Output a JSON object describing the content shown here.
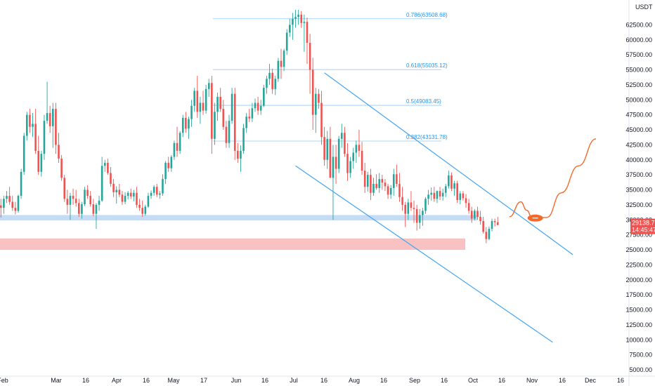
{
  "chart_data": {
    "type": "candlestick",
    "currency_label": "USDT",
    "x_ticks": [
      "Feb",
      "Mar",
      "16",
      "Apr",
      "16",
      "May",
      "17",
      "Jun",
      "16",
      "Jul",
      "16",
      "Aug",
      "16",
      "Sep",
      "16",
      "Oct",
      "16",
      "Nov",
      "16",
      "Dec",
      "16"
    ],
    "y_ticks": [
      "5000.00",
      "7500.00",
      "10000.00",
      "12500.00",
      "15000.00",
      "17500.00",
      "20000.00",
      "22500.00",
      "25000.00",
      "27500.00",
      "30000.00",
      "32500.00",
      "35000.00",
      "37500.00",
      "40000.00",
      "42500.00",
      "45000.00",
      "47500.00",
      "50000.00",
      "52500.00",
      "55000.00",
      "57500.00",
      "60000.00",
      "62500.00"
    ],
    "ylim": [
      4000,
      66000
    ],
    "last_price": {
      "value": "29138.71",
      "countdown": "14:45:47",
      "y": 29138.71
    },
    "fib_levels": [
      {
        "label": "0.786(63508.68)",
        "value": 63508.68
      },
      {
        "label": "0.618(55035.12)",
        "value": 55035.12
      },
      {
        "label": "0.5(49083.45)",
        "value": 49083.45
      },
      {
        "label": "0.382(43131.78)",
        "value": 43131.78
      }
    ],
    "zones": [
      {
        "name": "resistance",
        "y_low": 29900,
        "y_high": 30800,
        "color": "#bbd6f5"
      },
      {
        "name": "support",
        "y_low": 25000,
        "y_high": 26900,
        "color": "#f7b7b7"
      }
    ],
    "colors": {
      "up": "#26a69a",
      "down": "#ef5350",
      "channel": "#42a5f5",
      "projection": "#f4692a",
      "fib": "#90caf9",
      "price_tag": "#ef5350"
    },
    "candles": [
      [
        1,
        32400,
        33500,
        30400,
        32000
      ],
      [
        2,
        32000,
        34000,
        31000,
        33500
      ],
      [
        3,
        33500,
        34800,
        32800,
        34000
      ],
      [
        4,
        34000,
        35500,
        32500,
        33000
      ],
      [
        5,
        33000,
        34000,
        31500,
        32000
      ],
      [
        6,
        32000,
        33000,
        30900,
        31500
      ],
      [
        7,
        31500,
        34200,
        31200,
        34000
      ],
      [
        8,
        34000,
        38500,
        33500,
        38000
      ],
      [
        9,
        38000,
        44500,
        37500,
        44000
      ],
      [
        10,
        44000,
        48000,
        43200,
        47500
      ],
      [
        11,
        47500,
        48500,
        44500,
        45500
      ],
      [
        12,
        45500,
        47800,
        43800,
        46000
      ],
      [
        13,
        46000,
        48500,
        41000,
        41500
      ],
      [
        14,
        41500,
        44000,
        37500,
        38000
      ],
      [
        15,
        38000,
        41500,
        37200,
        41000
      ],
      [
        16,
        41000,
        47500,
        40000,
        46500
      ],
      [
        17,
        46500,
        53000,
        46000,
        47800
      ],
      [
        18,
        47800,
        49000,
        44500,
        45600
      ],
      [
        19,
        45600,
        49500,
        42000,
        48500
      ],
      [
        20,
        48500,
        49500,
        41000,
        42500
      ],
      [
        21,
        42500,
        44500,
        39500,
        40200
      ],
      [
        22,
        40200,
        40800,
        36500,
        37000
      ],
      [
        23,
        37000,
        37500,
        33000,
        33500
      ],
      [
        24,
        33500,
        35000,
        31000,
        32500
      ],
      [
        25,
        32500,
        34500,
        30000,
        34000
      ],
      [
        26,
        34000,
        35200,
        32500,
        33500
      ],
      [
        27,
        33500,
        35000,
        32200,
        32800
      ],
      [
        28,
        32800,
        33500,
        30500,
        31000
      ],
      [
        29,
        31000,
        33000,
        30200,
        32600
      ],
      [
        30,
        32600,
        35500,
        32300,
        35000
      ],
      [
        31,
        35000,
        35800,
        33500,
        34000
      ],
      [
        32,
        34000,
        34800,
        32200,
        32600
      ],
      [
        33,
        32600,
        33500,
        30600,
        31000
      ],
      [
        34,
        31000,
        32800,
        28500,
        32500
      ],
      [
        35,
        32500,
        34000,
        31500,
        33200
      ],
      [
        36,
        33200,
        40500,
        33000,
        39000
      ],
      [
        37,
        39000,
        40000,
        38000,
        39500
      ],
      [
        38,
        39500,
        40200,
        37500,
        37800
      ],
      [
        39,
        37800,
        38800,
        35500,
        36000
      ],
      [
        40,
        36000,
        36800,
        33800,
        34600
      ],
      [
        41,
        34600,
        35600,
        32700,
        35000
      ],
      [
        42,
        35000,
        36000,
        33800,
        34200
      ],
      [
        43,
        34200,
        34800,
        32500,
        33000
      ],
      [
        44,
        33000,
        34600,
        32600,
        34000
      ],
      [
        45,
        34000,
        34800,
        33400,
        34500
      ],
      [
        46,
        34500,
        35200,
        33500,
        33900
      ],
      [
        47,
        33900,
        35000,
        33100,
        34500
      ],
      [
        48,
        34500,
        35500,
        32000,
        32500
      ],
      [
        49,
        32500,
        33500,
        31500,
        32000
      ],
      [
        50,
        32000,
        33200,
        30500,
        31000
      ],
      [
        51,
        31000,
        32500,
        30700,
        32200
      ],
      [
        52,
        32200,
        34500,
        32000,
        34000
      ],
      [
        53,
        34000,
        34900,
        33500,
        34500
      ],
      [
        54,
        34500,
        35800,
        34000,
        35500
      ],
      [
        55,
        35500,
        36000,
        33800,
        34200
      ],
      [
        56,
        34200,
        34800,
        33500,
        34400
      ],
      [
        57,
        34400,
        37600,
        34000,
        36800
      ],
      [
        58,
        36800,
        39800,
        36000,
        39500
      ],
      [
        59,
        39500,
        40500,
        38000,
        38600
      ],
      [
        60,
        38600,
        40800,
        38000,
        40500
      ],
      [
        61,
        40500,
        43200,
        40000,
        42800
      ],
      [
        62,
        42800,
        45500,
        40500,
        41500
      ],
      [
        63,
        41500,
        44800,
        41000,
        44500
      ],
      [
        64,
        44500,
        47500,
        43800,
        47000
      ],
      [
        65,
        47000,
        48000,
        44500,
        45200
      ],
      [
        66,
        45200,
        47200,
        43500,
        46800
      ],
      [
        67,
        46800,
        50000,
        45500,
        49000
      ],
      [
        68,
        49000,
        52000,
        48000,
        51500
      ],
      [
        69,
        51500,
        54000,
        47000,
        48000
      ],
      [
        70,
        48000,
        50500,
        46000,
        49500
      ],
      [
        71,
        49500,
        51500,
        47500,
        48200
      ],
      [
        72,
        48200,
        52500,
        47700,
        51800
      ],
      [
        73,
        51800,
        53500,
        50500,
        52800
      ],
      [
        74,
        52800,
        54000,
        41000,
        43500
      ],
      [
        75,
        43500,
        49500,
        42500,
        48000
      ],
      [
        76,
        48000,
        51200,
        46500,
        50500
      ],
      [
        77,
        50500,
        52000,
        48000,
        48500
      ],
      [
        78,
        48500,
        50000,
        45000,
        45500
      ],
      [
        79,
        45500,
        46500,
        42000,
        42800
      ],
      [
        80,
        42800,
        47500,
        42000,
        46500
      ],
      [
        81,
        46500,
        52000,
        46000,
        51000
      ],
      [
        82,
        51000,
        52000,
        40000,
        41500
      ],
      [
        83,
        41500,
        42800,
        39500,
        40200
      ],
      [
        84,
        40200,
        42400,
        38000,
        41500
      ],
      [
        85,
        41500,
        46000,
        41000,
        45300
      ],
      [
        86,
        45300,
        47800,
        44500,
        47200
      ],
      [
        87,
        47200,
        48500,
        46300,
        46900
      ],
      [
        88,
        46900,
        49500,
        46300,
        48600
      ],
      [
        89,
        48600,
        50200,
        48000,
        49500
      ],
      [
        90,
        49500,
        50500,
        47500,
        48200
      ],
      [
        91,
        48200,
        50000,
        47500,
        49000
      ],
      [
        92,
        49000,
        52500,
        48800,
        52000
      ],
      [
        93,
        52000,
        54000,
        51000,
        53500
      ],
      [
        94,
        53500,
        56000,
        52500,
        54500
      ],
      [
        95,
        54500,
        55200,
        51000,
        51800
      ],
      [
        96,
        51800,
        54000,
        50800,
        53500
      ],
      [
        97,
        53500,
        57000,
        53000,
        56500
      ],
      [
        98,
        56500,
        58500,
        53500,
        55500
      ],
      [
        99,
        55500,
        58500,
        54800,
        58200
      ],
      [
        100,
        58200,
        61800,
        57500,
        61200
      ],
      [
        101,
        61200,
        63500,
        60500,
        62500
      ],
      [
        102,
        62500,
        64500,
        60000,
        63500
      ],
      [
        103,
        63500,
        65000,
        62000,
        63800
      ],
      [
        104,
        63800,
        65000,
        62500,
        64200
      ],
      [
        105,
        64200,
        64800,
        62000,
        62800
      ],
      [
        106,
        62800,
        64200,
        58000,
        63000
      ],
      [
        107,
        63000,
        63700,
        56000,
        59500
      ],
      [
        108,
        59500,
        61000,
        51000,
        55000
      ],
      [
        109,
        55000,
        57000,
        45000,
        47500
      ],
      [
        110,
        47500,
        52000,
        44500,
        51000
      ],
      [
        111,
        51000,
        51800,
        48500,
        49500
      ],
      [
        112,
        49500,
        51500,
        42500,
        43800
      ],
      [
        113,
        43800,
        45500,
        39000,
        40000
      ],
      [
        114,
        40000,
        44800,
        38500,
        43500
      ],
      [
        115,
        43500,
        45500,
        37000,
        37000
      ],
      [
        116,
        37000,
        42500,
        30000,
        40500
      ],
      [
        117,
        40500,
        42500,
        36000,
        38500
      ],
      [
        118,
        38500,
        44000,
        37800,
        43500
      ],
      [
        119,
        43500,
        46000,
        42000,
        44500
      ],
      [
        120,
        44500,
        45500,
        40500,
        41000
      ],
      [
        121,
        41000,
        42800,
        36500,
        37800
      ],
      [
        122,
        37800,
        40500,
        37000,
        39800
      ],
      [
        123,
        39800,
        42000,
        38500,
        41200
      ],
      [
        124,
        41200,
        43200,
        39500,
        42500
      ],
      [
        125,
        42500,
        45000,
        40500,
        41500
      ],
      [
        126,
        41500,
        43000,
        37500,
        38200
      ],
      [
        127,
        38200,
        39500,
        34500,
        35500
      ],
      [
        128,
        35500,
        38000,
        34700,
        37500
      ],
      [
        129,
        37500,
        38500,
        33300,
        34500
      ],
      [
        130,
        34500,
        37000,
        34000,
        36000
      ],
      [
        131,
        36000,
        37600,
        35000,
        35300
      ],
      [
        132,
        35300,
        37800,
        34500,
        36800
      ],
      [
        133,
        36800,
        37500,
        35000,
        36200
      ],
      [
        134,
        36200,
        36800,
        34800,
        35600
      ],
      [
        135,
        35600,
        36000,
        33500,
        34200
      ],
      [
        136,
        34200,
        35800,
        33500,
        35300
      ],
      [
        137,
        35300,
        38500,
        34000,
        37600
      ],
      [
        138,
        37600,
        39200,
        35500,
        36000
      ],
      [
        139,
        36000,
        37800,
        33000,
        33800
      ],
      [
        140,
        33800,
        35500,
        31500,
        32500
      ],
      [
        141,
        32500,
        33000,
        28800,
        31000
      ],
      [
        142,
        31000,
        33500,
        30000,
        32900
      ],
      [
        143,
        32900,
        34800,
        31500,
        32000
      ],
      [
        144,
        32000,
        33200,
        29500,
        31800
      ],
      [
        145,
        31800,
        32500,
        28200,
        29500
      ],
      [
        146,
        29500,
        31800,
        28500,
        30800
      ],
      [
        147,
        30800,
        32000,
        29000,
        31500
      ],
      [
        148,
        31500,
        33800,
        31000,
        33500
      ],
      [
        149,
        33500,
        35000,
        32500,
        34200
      ],
      [
        150,
        34200,
        35400,
        33200,
        34500
      ],
      [
        151,
        34500,
        35500,
        33000,
        33500
      ],
      [
        152,
        33500,
        34900,
        32800,
        34800
      ],
      [
        153,
        34800,
        35500,
        33300,
        33900
      ],
      [
        154,
        33900,
        35200,
        33200,
        34500
      ],
      [
        155,
        34500,
        36000,
        33800,
        35600
      ],
      [
        156,
        35600,
        38200,
        35200,
        37400
      ],
      [
        157,
        37400,
        37900,
        34800,
        35200
      ],
      [
        158,
        35200,
        36500,
        34000,
        36100
      ],
      [
        159,
        36100,
        36500,
        32800,
        33300
      ],
      [
        160,
        33300,
        34800,
        32600,
        34400
      ],
      [
        161,
        34400,
        34800,
        33200,
        33600
      ],
      [
        162,
        33600,
        34300,
        32000,
        32800
      ],
      [
        163,
        32800,
        33500,
        31000,
        31500
      ],
      [
        164,
        31500,
        32200,
        29500,
        30200
      ],
      [
        165,
        30200,
        31800,
        29900,
        31500
      ],
      [
        166,
        31500,
        32200,
        30000,
        30500
      ],
      [
        167,
        30500,
        31500,
        29200,
        29800
      ],
      [
        168,
        29800,
        30500,
        27700,
        28000
      ],
      [
        169,
        28000,
        28800,
        26100,
        26800
      ],
      [
        170,
        26800,
        28900,
        26600,
        28500
      ],
      [
        171,
        28500,
        30200,
        28100,
        29800
      ],
      [
        172,
        29800,
        30200,
        28900,
        29600
      ],
      [
        173,
        29600,
        30500,
        29100,
        29138.71
      ]
    ],
    "channel_lines": [
      {
        "name": "channel-upper",
        "x1": 113,
        "y1": 54500,
        "x2": 199,
        "y2": 24200
      },
      {
        "name": "channel-lower",
        "x1": 103,
        "y1": 39000,
        "x2": 192,
        "y2": 9600
      }
    ],
    "projection": {
      "end_label": "",
      "points": [
        [
          177,
          30500
        ],
        [
          181,
          33000
        ],
        [
          183,
          31600
        ],
        [
          185,
          30300
        ],
        [
          190,
          30400
        ],
        [
          195,
          34500
        ],
        [
          201,
          39000
        ],
        [
          207,
          43500
        ]
      ],
      "highlight": [
        186,
        30300
      ]
    }
  }
}
